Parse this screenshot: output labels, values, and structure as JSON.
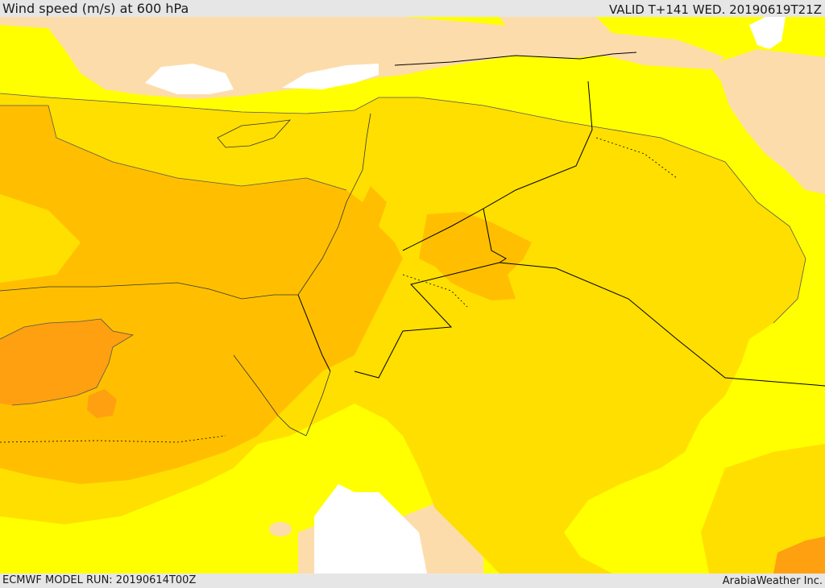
{
  "header": {
    "title": "Wind speed (m/s) at 600 hPa",
    "valid": "VALID T+141 WED. 20190619T21Z"
  },
  "footer": {
    "model_run": "ECMWF MODEL RUN: 20190614T00Z",
    "brand": "ArabiaWeather Inc."
  },
  "colors": {
    "land": "#fddcab",
    "sea": "#ffffff",
    "band_1": "#ffff00",
    "band_2": "#ffdf00",
    "band_3": "#ffbf00",
    "band_4": "#ffa010",
    "boundary": "#000000"
  }
}
